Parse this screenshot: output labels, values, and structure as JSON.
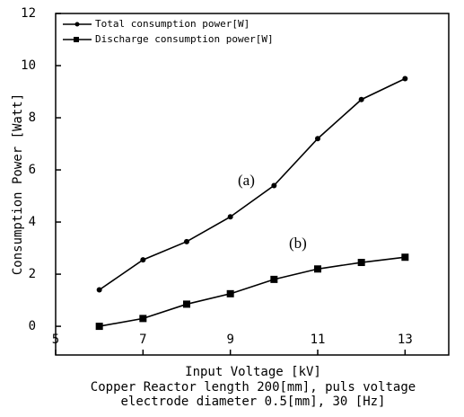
{
  "chart_data": {
    "type": "line",
    "x_label": "Input Voltage [kV]",
    "y_label": "Consumption Power [Watt]",
    "caption": [
      "Copper Reactor length 200[mm], puls voltage",
      "electrode diameter 0.5[mm], 30 [Hz]"
    ],
    "annotations": [
      "(a)",
      "(b)"
    ],
    "x": [
      6,
      7,
      8,
      9,
      10,
      11,
      12,
      13
    ],
    "series": [
      {
        "name": "Total consumption power[W]",
        "color": "#000000",
        "marker": "circle",
        "values": [
          1.4,
          2.55,
          3.25,
          4.2,
          5.4,
          7.2,
          8.7,
          9.5
        ]
      },
      {
        "name": "Discharge consumption power[W]",
        "color": "#000000",
        "marker": "square",
        "values": [
          0,
          0.3,
          0.85,
          1.25,
          1.8,
          2.2,
          2.45,
          2.65
        ]
      }
    ],
    "xlim": [
      5,
      14
    ],
    "xticks": [
      5,
      7,
      9,
      11,
      13
    ],
    "ylim": [
      -1.1,
      12
    ],
    "yticks": [
      0,
      2,
      4,
      6,
      8,
      10,
      12
    ],
    "legend": "upper left",
    "grid": false
  }
}
